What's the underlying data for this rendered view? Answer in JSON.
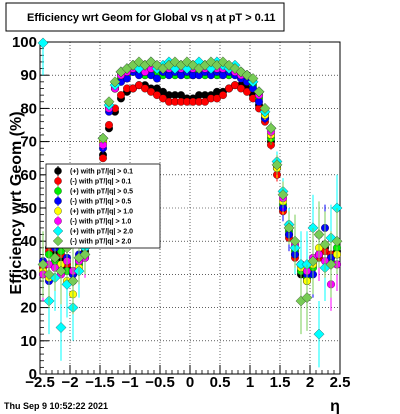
{
  "footer": {
    "timestamp": "Thu Sep  9 10:52:22 2021"
  },
  "chart_data": {
    "type": "scatter",
    "title": "Efficiency wrt Geom for Global vs  η at pT > 0.11",
    "xlabel": "η",
    "ylabel": "Efficiency wrt Geom (%)",
    "xlim": [
      -2.5,
      2.5
    ],
    "ylim": [
      0,
      100
    ],
    "xticks": [
      "−2.5",
      "−2",
      "−1.5",
      "−1",
      "−0.5",
      "0",
      "0.5",
      "1",
      "1.5",
      "2",
      "2.5"
    ],
    "xtick_values": [
      -2.5,
      -2,
      -1.5,
      -1,
      -0.5,
      0,
      0.5,
      1,
      1.5,
      2,
      2.5
    ],
    "yticks": [
      "0",
      "10",
      "20",
      "30",
      "40",
      "50",
      "60",
      "70",
      "80",
      "90",
      "100"
    ],
    "ytick_values": [
      0,
      10,
      20,
      30,
      40,
      50,
      60,
      70,
      80,
      90,
      100
    ],
    "grid": true,
    "legend_position": "left-middle",
    "x": [
      -2.45,
      -2.35,
      -2.25,
      -2.15,
      -2.05,
      -1.95,
      -1.85,
      -1.75,
      -1.65,
      -1.55,
      -1.45,
      -1.35,
      -1.25,
      -1.15,
      -1.05,
      -0.95,
      -0.85,
      -0.75,
      -0.65,
      -0.55,
      -0.45,
      -0.35,
      -0.25,
      -0.15,
      -0.05,
      0.05,
      0.15,
      0.25,
      0.35,
      0.45,
      0.55,
      0.65,
      0.75,
      0.85,
      0.95,
      1.05,
      1.15,
      1.25,
      1.35,
      1.45,
      1.55,
      1.65,
      1.75,
      1.85,
      1.95,
      2.05,
      2.15,
      2.25,
      2.35,
      2.45
    ],
    "series": [
      {
        "name": "(+) with pT/|q| > 0.1",
        "color": "#000000",
        "marker": "circle",
        "values": [
          33,
          38,
          36,
          35,
          32,
          30,
          35,
          37,
          45,
          55,
          66,
          74,
          79,
          83,
          85,
          86,
          87,
          87,
          86,
          86,
          85,
          84,
          84,
          84,
          83,
          83,
          84,
          84,
          84,
          85,
          85,
          86,
          87,
          87,
          86,
          84,
          81,
          77,
          70,
          62,
          50,
          42,
          36,
          30,
          28,
          34,
          36,
          38,
          35,
          37
        ],
        "errors": [
          6,
          6,
          6,
          6,
          6,
          6,
          5,
          4,
          2,
          1.5,
          1,
          1,
          0.8,
          0.8,
          0.8,
          0.8,
          0.8,
          0.8,
          0.8,
          0.8,
          0.8,
          0.8,
          0.8,
          0.8,
          0.8,
          0.8,
          0.8,
          0.8,
          0.8,
          0.8,
          0.8,
          0.8,
          0.8,
          0.8,
          0.8,
          0.8,
          1,
          1,
          1.5,
          2,
          3,
          4,
          5,
          6,
          6,
          6,
          6,
          6,
          6,
          6
        ]
      },
      {
        "name": "(-) with pT/|q| > 0.1",
        "color": "#ff0000",
        "marker": "circle",
        "values": [
          32,
          37,
          35,
          36,
          33,
          31,
          34,
          36,
          44,
          54,
          65,
          75,
          80,
          84,
          86,
          86,
          87,
          86,
          85,
          84,
          83,
          82,
          82,
          82,
          82,
          82,
          82,
          82,
          83,
          83,
          84,
          86,
          87,
          86,
          85,
          83,
          80,
          76,
          69,
          60,
          49,
          41,
          35,
          31,
          29,
          33,
          35,
          37,
          36,
          36
        ],
        "errors": [
          6,
          6,
          6,
          6,
          6,
          6,
          5,
          4,
          2,
          1.5,
          1,
          1,
          0.8,
          0.8,
          0.8,
          0.8,
          0.8,
          0.8,
          0.8,
          0.8,
          0.8,
          0.8,
          0.8,
          0.8,
          0.8,
          0.8,
          0.8,
          0.8,
          0.8,
          0.8,
          0.8,
          0.8,
          0.8,
          0.8,
          0.8,
          0.8,
          1,
          1,
          1.5,
          2,
          3,
          4,
          5,
          6,
          6,
          6,
          6,
          6,
          6,
          6
        ]
      },
      {
        "name": "(+) with pT/|q| > 0.5",
        "color": "#00ee00",
        "marker": "circle",
        "values": [
          30,
          36,
          34,
          37,
          31,
          28,
          33,
          38,
          47,
          57,
          70,
          80,
          86,
          89,
          90,
          91,
          91,
          90,
          91,
          90,
          90,
          91,
          90,
          91,
          90,
          90,
          91,
          90,
          91,
          90,
          91,
          90,
          91,
          90,
          89,
          87,
          83,
          78,
          71,
          63,
          51,
          43,
          37,
          31,
          29,
          32,
          36,
          39,
          34,
          38
        ],
        "errors": [
          7,
          7,
          7,
          7,
          7,
          7,
          6,
          5,
          3,
          2,
          1.5,
          1,
          1,
          1,
          1,
          1,
          1,
          1,
          1,
          1,
          1,
          1,
          1,
          1,
          1,
          1,
          1,
          1,
          1,
          1,
          1,
          1,
          1,
          1,
          1,
          1,
          1,
          1.5,
          2,
          3,
          4,
          5,
          6,
          7,
          7,
          7,
          7,
          7,
          7,
          7
        ]
      },
      {
        "name": "(-) with pT/|q| > 0.5",
        "color": "#0000ff",
        "marker": "circle",
        "values": [
          34,
          28,
          38,
          33,
          35,
          30,
          36,
          35,
          46,
          56,
          68,
          79,
          86,
          88,
          89,
          91,
          90,
          91,
          90,
          89,
          91,
          90,
          91,
          90,
          91,
          90,
          90,
          91,
          90,
          91,
          90,
          91,
          90,
          89,
          88,
          86,
          82,
          77,
          72,
          62,
          50,
          42,
          36,
          33,
          30,
          30,
          42,
          44,
          35,
          33
        ],
        "errors": [
          7,
          7,
          7,
          7,
          7,
          7,
          6,
          5,
          3,
          2,
          1.5,
          1,
          1,
          1,
          1,
          1,
          1,
          1,
          1,
          1,
          1,
          1,
          1,
          1,
          1,
          1,
          1,
          1,
          1,
          1,
          1,
          1,
          1,
          1,
          1,
          1,
          1,
          1.5,
          2,
          3,
          4,
          5,
          6,
          7,
          7,
          7,
          7,
          7,
          7,
          7
        ]
      },
      {
        "name": "(+) with pT/|q| > 1.0",
        "color": "#ffff00",
        "marker": "circle",
        "values": [
          31,
          29,
          35,
          33,
          28,
          24,
          32,
          36,
          47,
          58,
          70,
          80,
          87,
          90,
          91,
          92,
          92,
          93,
          92,
          92,
          92,
          93,
          92,
          93,
          92,
          93,
          92,
          93,
          92,
          92,
          93,
          92,
          92,
          91,
          90,
          88,
          84,
          78,
          72,
          62,
          52,
          44,
          38,
          32,
          28,
          33,
          38,
          39,
          33,
          36
        ],
        "errors": [
          8,
          8,
          8,
          8,
          8,
          8,
          7,
          6,
          3,
          2,
          1.5,
          1,
          1,
          1,
          1,
          1,
          1,
          1,
          1,
          1,
          1,
          1,
          1,
          1,
          1,
          1,
          1,
          1,
          1,
          1,
          1,
          1,
          1,
          1,
          1,
          1,
          1,
          1.5,
          2,
          3,
          4,
          5,
          7,
          8,
          8,
          8,
          8,
          8,
          8,
          8
        ]
      },
      {
        "name": "(-) with pT/|q| > 1.0",
        "color": "#ff00ff",
        "marker": "circle",
        "values": [
          30,
          33,
          32,
          30,
          34,
          31,
          34,
          35,
          46,
          57,
          69,
          80,
          86,
          90,
          91,
          92,
          92,
          91,
          92,
          93,
          92,
          92,
          93,
          92,
          92,
          92,
          93,
          92,
          93,
          92,
          92,
          92,
          91,
          90,
          90,
          88,
          84,
          79,
          73,
          63,
          53,
          45,
          39,
          33,
          31,
          35,
          36,
          34,
          27,
          33
        ],
        "errors": [
          8,
          8,
          8,
          8,
          8,
          8,
          7,
          6,
          3,
          2,
          1.5,
          1,
          1,
          1,
          1,
          1,
          1,
          1,
          1,
          1,
          1,
          1,
          1,
          1,
          1,
          1,
          1,
          1,
          1,
          1,
          1,
          1,
          1,
          1,
          1,
          1,
          1,
          1.5,
          2,
          3,
          4,
          5,
          7,
          8,
          8,
          8,
          8,
          8,
          8,
          8
        ]
      },
      {
        "name": "(+) with pT/|q| > 2.0",
        "color": "#00ffff",
        "marker": "diamond",
        "values": [
          100,
          22,
          29,
          14,
          27,
          20,
          31,
          38,
          48,
          58,
          71,
          81,
          87,
          91,
          92,
          93,
          92,
          93,
          94,
          92,
          93,
          94,
          92,
          93,
          92,
          93,
          94,
          93,
          92,
          94,
          93,
          92,
          93,
          91,
          90,
          88,
          85,
          79,
          74,
          64,
          55,
          45,
          38,
          33,
          33,
          44,
          12,
          32,
          41,
          50
        ],
        "errors": [
          10,
          10,
          10,
          10,
          10,
          10,
          8,
          6,
          3,
          2,
          1.5,
          1,
          1,
          1,
          1,
          1,
          1,
          1,
          1,
          1,
          1,
          1,
          1,
          1,
          1,
          1,
          1,
          1,
          1,
          1,
          1,
          1,
          1,
          1,
          1,
          1,
          1,
          1.5,
          2,
          3,
          4,
          5,
          8,
          10,
          10,
          10,
          10,
          10,
          10,
          10
        ]
      },
      {
        "name": "(-) with pT/|q| > 2.0",
        "color": "#77cc55",
        "marker": "diamond",
        "values": [
          33,
          30,
          35,
          31,
          38,
          28,
          35,
          36,
          49,
          59,
          71,
          82,
          88,
          91,
          92,
          93,
          94,
          93,
          94,
          93,
          92,
          93,
          94,
          93,
          94,
          93,
          92,
          93,
          94,
          93,
          94,
          93,
          92,
          91,
          90,
          89,
          85,
          80,
          74,
          63,
          54,
          44,
          40,
          22,
          23,
          34,
          42,
          39,
          33,
          40
        ],
        "errors": [
          10,
          10,
          10,
          10,
          10,
          10,
          8,
          6,
          3,
          2,
          1.5,
          1,
          1,
          1,
          1,
          1,
          1,
          1,
          1,
          1,
          1,
          1,
          1,
          1,
          1,
          1,
          1,
          1,
          1,
          1,
          1,
          1,
          1,
          1,
          1,
          1,
          1,
          1.5,
          2,
          3,
          4,
          5,
          8,
          10,
          10,
          10,
          10,
          10,
          10,
          10
        ]
      }
    ]
  }
}
